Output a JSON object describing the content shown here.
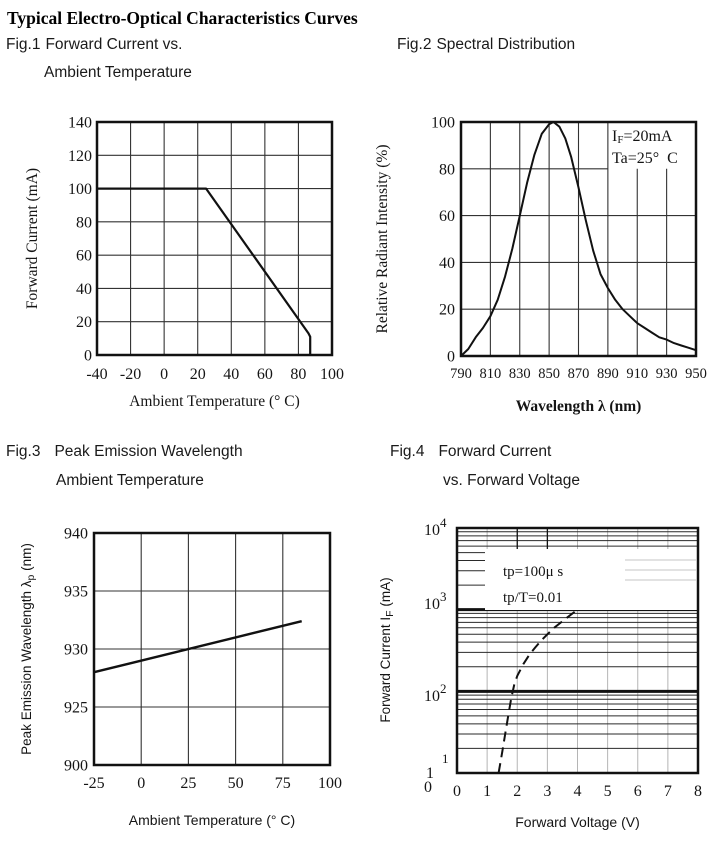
{
  "page": {
    "title": "Typical Electro-Optical Characteristics Curves"
  },
  "figures": [
    {
      "tag": "Fig.1",
      "heading": "Forward Current vs.",
      "heading_line2": "Ambient Temperature"
    },
    {
      "tag": "Fig.2",
      "heading": "Spectral Distribution",
      "heading_line2": ""
    },
    {
      "tag": "Fig.3",
      "heading": "Peak Emission Wavelength",
      "heading_line2": "Ambient Temperature"
    },
    {
      "tag": "Fig.4",
      "heading": "Forward Current",
      "heading_line2": "vs. Forward Voltage"
    }
  ],
  "chart_data": [
    {
      "id": "fig1",
      "type": "line",
      "title": "Forward Current vs. Ambient Temperature",
      "xlabel": "Ambient Temperature (° C)",
      "ylabel": "Forward Current (mA)",
      "xlim": [
        -40,
        100
      ],
      "ylim": [
        0,
        140
      ],
      "xticks": [
        -40,
        -20,
        0,
        20,
        40,
        60,
        80,
        100
      ],
      "yticks": [
        0,
        20,
        40,
        60,
        80,
        100,
        120,
        140
      ],
      "grid": true,
      "series": [
        {
          "name": "max-forward-current-derating",
          "points": [
            [
              -40,
              100
            ],
            [
              25,
              100
            ],
            [
              86,
              13
            ],
            [
              87,
              11
            ],
            [
              87,
              0
            ]
          ]
        }
      ]
    },
    {
      "id": "fig2",
      "type": "line",
      "title": "Spectral Distribution",
      "xlabel": "Wavelength λ (nm)",
      "ylabel": "Relative Radiant Intensity (%)",
      "xlim": [
        790,
        950
      ],
      "ylim": [
        0,
        100
      ],
      "xticks": [
        790,
        810,
        830,
        850,
        870,
        890,
        910,
        930,
        950
      ],
      "yticks": [
        0,
        20,
        40,
        60,
        80,
        100
      ],
      "grid": true,
      "partial_gridlines": {
        "ticks": [
          910,
          930
        ],
        "start_at_percent": 80
      },
      "annotation": {
        "line1_pre": "I",
        "line1_sub": "F",
        "line1_post": "=20mA",
        "line2": "Ta=25°  C"
      },
      "peak_nm": 853,
      "series": [
        {
          "name": "relative-radiant-intensity",
          "points": [
            [
              790,
              0
            ],
            [
              795,
              3
            ],
            [
              800,
              8
            ],
            [
              805,
              12
            ],
            [
              810,
              17
            ],
            [
              815,
              24
            ],
            [
              820,
              34
            ],
            [
              825,
              46
            ],
            [
              830,
              60
            ],
            [
              835,
              74
            ],
            [
              840,
              86
            ],
            [
              845,
              95
            ],
            [
              850,
              99
            ],
            [
              853,
              100
            ],
            [
              857,
              98
            ],
            [
              861,
              93
            ],
            [
              865,
              85
            ],
            [
              870,
              72
            ],
            [
              875,
              58
            ],
            [
              880,
              45
            ],
            [
              885,
              35
            ],
            [
              890,
              29
            ],
            [
              895,
              24
            ],
            [
              900,
              20
            ],
            [
              905,
              17
            ],
            [
              910,
              14
            ],
            [
              915,
              12
            ],
            [
              920,
              10
            ],
            [
              925,
              8
            ],
            [
              930,
              7
            ],
            [
              935,
              5.5
            ],
            [
              940,
              4.5
            ],
            [
              945,
              3.5
            ],
            [
              950,
              2.5
            ]
          ]
        }
      ]
    },
    {
      "id": "fig3",
      "type": "line",
      "title": "Peak Emission Wavelength vs. Ambient Temperature",
      "xlabel": "Ambient Temperature (° C)",
      "ylabel_pre": "Peak Emission Wavelength  λ",
      "ylabel_sub": "p",
      "ylabel_post": " (nm)",
      "xlim": [
        -25,
        100
      ],
      "ylim": [
        900,
        940
      ],
      "xticks": [
        -25,
        0,
        25,
        50,
        75,
        100
      ],
      "yticks": [
        940,
        935,
        930,
        925,
        900
      ],
      "y_axis_note": "tick rows evenly spaced as printed (compressed below 925)",
      "grid": true,
      "series": [
        {
          "name": "peak-wavelength",
          "points": [
            [
              -25,
              928
            ],
            [
              85,
              932.4
            ]
          ]
        }
      ]
    },
    {
      "id": "fig4",
      "type": "line",
      "title": "Forward Current vs. Forward Voltage",
      "xlabel": "Forward Voltage (V)",
      "ylabel_pre": "Forward Current I",
      "ylabel_sub": "F",
      "ylabel_post": " (mA)",
      "xlim": [
        0,
        8
      ],
      "xticks": [
        0,
        1,
        2,
        3,
        4,
        5,
        6,
        7,
        8
      ],
      "yscale": "log",
      "ylim": [
        10,
        10000
      ],
      "yticks_log": [
        {
          "base": "10",
          "exp": "4"
        },
        {
          "base": "10",
          "exp": "3"
        },
        {
          "base": "10",
          "exp": "2"
        },
        {
          "base": "10",
          "exp": "1",
          "stacked": true
        }
      ],
      "annotation": {
        "line1": "tp=100μ s",
        "line2": "tp/T=0.01"
      },
      "series": [
        {
          "name": "forward-current-vs-voltage",
          "style": "dashed",
          "points": [
            [
              1.38,
              10
            ],
            [
              1.5,
              18
            ],
            [
              1.6,
              30
            ],
            [
              1.7,
              50
            ],
            [
              1.8,
              82
            ],
            [
              1.9,
              120
            ],
            [
              2.0,
              155
            ],
            [
              2.2,
              215
            ],
            [
              2.4,
              280
            ],
            [
              2.6,
              345
            ],
            [
              2.8,
              420
            ],
            [
              3.0,
              500
            ],
            [
              3.2,
              590
            ],
            [
              3.5,
              720
            ],
            [
              3.8,
              880
            ],
            [
              4.0,
              1000
            ]
          ]
        }
      ]
    }
  ]
}
